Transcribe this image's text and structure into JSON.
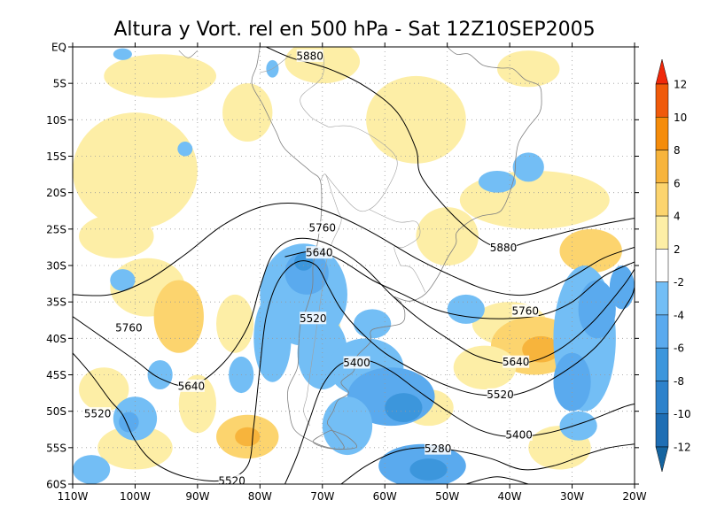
{
  "title": "Altura y Vort. rel en 500 hPa - Sat 12Z10SEP2005",
  "map": {
    "lon_range": [
      -110,
      -20
    ],
    "lat_range": [
      -60,
      0
    ],
    "lat_ticks": [
      {
        "v": 0,
        "label": "EQ"
      },
      {
        "v": -5,
        "label": "5S"
      },
      {
        "v": -10,
        "label": "10S"
      },
      {
        "v": -15,
        "label": "15S"
      },
      {
        "v": -20,
        "label": "20S"
      },
      {
        "v": -25,
        "label": "25S"
      },
      {
        "v": -30,
        "label": "30S"
      },
      {
        "v": -35,
        "label": "35S"
      },
      {
        "v": -40,
        "label": "40S"
      },
      {
        "v": -45,
        "label": "45S"
      },
      {
        "v": -50,
        "label": "50S"
      },
      {
        "v": -55,
        "label": "55S"
      },
      {
        "v": -60,
        "label": "60S"
      }
    ],
    "lon_ticks": [
      {
        "v": -110,
        "label": "110W"
      },
      {
        "v": -100,
        "label": "100W"
      },
      {
        "v": -90,
        "label": "90W"
      },
      {
        "v": -80,
        "label": "80W"
      },
      {
        "v": -70,
        "label": "70W"
      },
      {
        "v": -60,
        "label": "60W"
      },
      {
        "v": -50,
        "label": "50W"
      },
      {
        "v": -40,
        "label": "40W"
      },
      {
        "v": -30,
        "label": "30W"
      },
      {
        "v": -20,
        "label": "20W"
      }
    ],
    "grid": true
  },
  "contours": [
    {
      "value": 5880,
      "labels": [
        {
          "text": "5880",
          "lon": -72,
          "lat": -1.2
        },
        {
          "text": "5880",
          "lon": -41,
          "lat": -27.5
        }
      ],
      "lines": [
        [
          [
            -79,
            0
          ],
          [
            -75,
            -1.5
          ],
          [
            -69,
            -3
          ],
          [
            -63,
            -5.5
          ],
          [
            -58,
            -9
          ],
          [
            -55,
            -14
          ],
          [
            -54,
            -18
          ],
          [
            -48,
            -24
          ],
          [
            -42,
            -27.5
          ],
          [
            -36,
            -26.5
          ],
          [
            -29,
            -25
          ],
          [
            -20,
            -23.5
          ]
        ]
      ]
    },
    {
      "value": 5760,
      "labels": [
        {
          "text": "5760",
          "lon": -70,
          "lat": -24.8
        },
        {
          "text": "5760",
          "lon": -101,
          "lat": -38.5
        },
        {
          "text": "5760",
          "lon": -37.5,
          "lat": -36.2
        }
      ],
      "lines": [
        [
          [
            -110,
            -34
          ],
          [
            -104,
            -34
          ],
          [
            -98,
            -32
          ],
          [
            -92,
            -28.5
          ],
          [
            -86,
            -24.5
          ],
          [
            -80,
            -22
          ],
          [
            -74,
            -21.5
          ],
          [
            -68,
            -23
          ],
          [
            -62,
            -25.5
          ],
          [
            -55,
            -29
          ],
          [
            -49,
            -31.5
          ],
          [
            -43,
            -33.5
          ],
          [
            -37,
            -34
          ],
          [
            -31,
            -32
          ],
          [
            -25,
            -29
          ],
          [
            -20,
            -27.5
          ]
        ],
        [
          [
            -20,
            -29.5
          ],
          [
            -25,
            -31.5
          ],
          [
            -30,
            -35
          ],
          [
            -35,
            -36.8
          ],
          [
            -41,
            -37.3
          ],
          [
            -47,
            -37
          ],
          [
            -52,
            -36
          ],
          [
            -57,
            -34
          ],
          [
            -62,
            -32
          ],
          [
            -67,
            -29.3
          ],
          [
            -71,
            -28
          ],
          [
            -76,
            -28.8
          ]
        ]
      ]
    },
    {
      "value": 5640,
      "labels": [
        {
          "text": "5640",
          "lon": -70.5,
          "lat": -28.2
        },
        {
          "text": "5640",
          "lon": -91,
          "lat": -46.5
        },
        {
          "text": "5640",
          "lon": -39,
          "lat": -43.2
        }
      ],
      "lines": [
        [
          [
            -110,
            -37
          ],
          [
            -105,
            -40
          ],
          [
            -100,
            -43
          ],
          [
            -96,
            -45.5
          ],
          [
            -91,
            -46.5
          ],
          [
            -86,
            -43.5
          ],
          [
            -82,
            -38.5
          ],
          [
            -80,
            -33
          ],
          [
            -78,
            -28.5
          ],
          [
            -75,
            -26.5
          ],
          [
            -71,
            -26.5
          ],
          [
            -67,
            -28
          ],
          [
            -63,
            -30.5
          ],
          [
            -59,
            -34
          ],
          [
            -55,
            -37
          ],
          [
            -50,
            -40
          ],
          [
            -45,
            -42.5
          ],
          [
            -39,
            -43.5
          ],
          [
            -33,
            -42
          ],
          [
            -27,
            -38
          ],
          [
            -22,
            -33
          ],
          [
            -20,
            -30.5
          ]
        ]
      ]
    },
    {
      "value": 5520,
      "labels": [
        {
          "text": "5520",
          "lon": -71.5,
          "lat": -37.2
        },
        {
          "text": "5520",
          "lon": -106,
          "lat": -50.3
        },
        {
          "text": "5520",
          "lon": -41.5,
          "lat": -47.7
        },
        {
          "text": "5520",
          "lon": -84.5,
          "lat": -59.5
        }
      ],
      "lines": [
        [
          [
            -110,
            -42
          ],
          [
            -107,
            -45
          ],
          [
            -104,
            -48.5
          ],
          [
            -102,
            -50.5
          ],
          [
            -100,
            -54
          ],
          [
            -97,
            -57
          ],
          [
            -92,
            -59
          ],
          [
            -86,
            -59.5
          ],
          [
            -82,
            -57.5
          ],
          [
            -81,
            -52
          ],
          [
            -80,
            -44
          ],
          [
            -79,
            -37
          ],
          [
            -77,
            -32
          ],
          [
            -74,
            -29.5
          ],
          [
            -71,
            -30
          ],
          [
            -69,
            -33
          ],
          [
            -67,
            -36
          ],
          [
            -64,
            -39
          ],
          [
            -60,
            -42
          ],
          [
            -55,
            -44.5
          ],
          [
            -50,
            -46.5
          ],
          [
            -45,
            -47.7
          ],
          [
            -39,
            -47.7
          ],
          [
            -33,
            -45.5
          ],
          [
            -26,
            -41
          ],
          [
            -21,
            -35
          ],
          [
            -20,
            -33
          ]
        ]
      ]
    },
    {
      "value": 5400,
      "labels": [
        {
          "text": "5400",
          "lon": -64.5,
          "lat": -43.3
        },
        {
          "text": "5400",
          "lon": -38.5,
          "lat": -53.2
        }
      ],
      "lines": [
        [
          [
            -76,
            -60
          ],
          [
            -74,
            -56
          ],
          [
            -72,
            -51
          ],
          [
            -70,
            -46.5
          ],
          [
            -67,
            -43.5
          ],
          [
            -63,
            -43
          ],
          [
            -59,
            -44.5
          ],
          [
            -55,
            -47
          ],
          [
            -50,
            -50
          ],
          [
            -45,
            -52.5
          ],
          [
            -40,
            -53.5
          ],
          [
            -34,
            -53
          ],
          [
            -28,
            -51.5
          ],
          [
            -22,
            -49.5
          ],
          [
            -20,
            -49
          ]
        ]
      ]
    },
    {
      "value": 5280,
      "labels": [
        {
          "text": "5280",
          "lon": -51.5,
          "lat": -55.1
        }
      ],
      "lines": [
        [
          [
            -67,
            -60
          ],
          [
            -63,
            -57.5
          ],
          [
            -58,
            -55.5
          ],
          [
            -53,
            -55
          ],
          [
            -48,
            -55.5
          ],
          [
            -43,
            -56.5
          ],
          [
            -38,
            -58
          ],
          [
            -33,
            -57.5
          ],
          [
            -28,
            -56
          ],
          [
            -24,
            -55
          ],
          [
            -20,
            -54.5
          ]
        ],
        [
          [
            -47,
            -60
          ],
          [
            -42,
            -59
          ],
          [
            -37,
            -60
          ]
        ]
      ]
    }
  ],
  "colorbar": {
    "ticks": [
      {
        "label": "12"
      },
      {
        "label": "10"
      },
      {
        "label": "8"
      },
      {
        "label": "6"
      },
      {
        "label": "4"
      },
      {
        "label": "2"
      },
      {
        "label": "-2"
      },
      {
        "label": "-4"
      },
      {
        "label": "-6"
      },
      {
        "label": "-8"
      },
      {
        "label": "-10"
      },
      {
        "label": "-12"
      }
    ],
    "colors": {
      "gt12": "#f0280a",
      "b10_12": "#f05a0a",
      "b8_10": "#f58c0a",
      "b6_8": "#f7b43c",
      "b4_6": "#fcd46e",
      "b2_4": "#fdeea6",
      "b0": "#ffffff",
      "bn2_n4": "#73bef5",
      "bn4_n6": "#5aaaee",
      "bn6_n8": "#3c96dc",
      "bn8_n10": "#2d82cb",
      "bn10_n12": "#1e6eb4",
      "ltn12": "#1464a0"
    }
  },
  "shading": {
    "positive": [
      {
        "lon": -100,
        "lat": -17,
        "rx": 10,
        "ry": 8,
        "level": 1
      },
      {
        "lon": -96,
        "lat": -4,
        "rx": 9,
        "ry": 3,
        "level": 1
      },
      {
        "lon": -82,
        "lat": -9,
        "rx": 4,
        "ry": 4,
        "level": 1
      },
      {
        "lon": -103,
        "lat": -26,
        "rx": 6,
        "ry": 3,
        "level": 1
      },
      {
        "lon": -98,
        "lat": -33,
        "rx": 6,
        "ry": 4,
        "level": 1
      },
      {
        "lon": -93,
        "lat": -37,
        "rx": 4,
        "ry": 5,
        "level": 2
      },
      {
        "lon": -84,
        "lat": -38,
        "rx": 3,
        "ry": 4,
        "level": 1
      },
      {
        "lon": -90,
        "lat": -49,
        "rx": 3,
        "ry": 4,
        "level": 1
      },
      {
        "lon": -82,
        "lat": -53.5,
        "rx": 5,
        "ry": 3,
        "level": 2
      },
      {
        "lon": -82,
        "lat": -53.5,
        "rx": 2,
        "ry": 1.3,
        "level": 3
      },
      {
        "lon": -100,
        "lat": -55,
        "rx": 6,
        "ry": 3,
        "level": 1
      },
      {
        "lon": -70,
        "lat": -2,
        "rx": 6,
        "ry": 3,
        "level": 1
      },
      {
        "lon": -55,
        "lat": -10,
        "rx": 8,
        "ry": 6,
        "level": 1
      },
      {
        "lon": -50,
        "lat": -26,
        "rx": 5,
        "ry": 4,
        "level": 1
      },
      {
        "lon": -36,
        "lat": -21,
        "rx": 12,
        "ry": 4,
        "level": 1
      },
      {
        "lon": -27,
        "lat": -28,
        "rx": 5,
        "ry": 3,
        "level": 2
      },
      {
        "lon": -40,
        "lat": -38,
        "rx": 6,
        "ry": 3,
        "level": 1
      },
      {
        "lon": -36,
        "lat": -41,
        "rx": 7,
        "ry": 4,
        "level": 2
      },
      {
        "lon": -35,
        "lat": -41.5,
        "rx": 3,
        "ry": 1.8,
        "level": 3
      },
      {
        "lon": -44,
        "lat": -44,
        "rx": 5,
        "ry": 3,
        "level": 1
      },
      {
        "lon": -53,
        "lat": -49.5,
        "rx": 4,
        "ry": 2.5,
        "level": 1
      },
      {
        "lon": -32,
        "lat": -55,
        "rx": 5,
        "ry": 3,
        "level": 1
      },
      {
        "lon": -70,
        "lat": -40,
        "rx": 3,
        "ry": 6,
        "level": 1
      },
      {
        "lon": -105,
        "lat": -47,
        "rx": 4,
        "ry": 3,
        "level": 1
      },
      {
        "lon": -37,
        "lat": -3,
        "rx": 5,
        "ry": 2.5,
        "level": 1
      }
    ],
    "negative": [
      {
        "lon": -73,
        "lat": -34,
        "rx": 7,
        "ry": 7,
        "level": 1
      },
      {
        "lon": -72.5,
        "lat": -31,
        "rx": 3.5,
        "ry": 3,
        "level": 2
      },
      {
        "lon": -73,
        "lat": -29.5,
        "rx": 1.5,
        "ry": 1.2,
        "level": 3
      },
      {
        "lon": -78,
        "lat": -40,
        "rx": 3,
        "ry": 6,
        "level": 1
      },
      {
        "lon": -70,
        "lat": -42,
        "rx": 4,
        "ry": 5,
        "level": 1
      },
      {
        "lon": -63,
        "lat": -44,
        "rx": 6,
        "ry": 4,
        "level": 1
      },
      {
        "lon": -59,
        "lat": -48,
        "rx": 7,
        "ry": 4,
        "level": 2
      },
      {
        "lon": -57,
        "lat": -49.5,
        "rx": 3,
        "ry": 2,
        "level": 3
      },
      {
        "lon": -66,
        "lat": -52,
        "rx": 4,
        "ry": 4,
        "level": 1
      },
      {
        "lon": -54,
        "lat": -57.5,
        "rx": 7,
        "ry": 3,
        "level": 2
      },
      {
        "lon": -53,
        "lat": -58,
        "rx": 3,
        "ry": 1.5,
        "level": 3
      },
      {
        "lon": -62,
        "lat": -38,
        "rx": 3,
        "ry": 2,
        "level": 1
      },
      {
        "lon": -47,
        "lat": -36,
        "rx": 3,
        "ry": 2,
        "level": 1
      },
      {
        "lon": -28,
        "lat": -40,
        "rx": 5,
        "ry": 10,
        "level": 1
      },
      {
        "lon": -26,
        "lat": -36,
        "rx": 3,
        "ry": 4,
        "level": 2
      },
      {
        "lon": -30,
        "lat": -46,
        "rx": 3,
        "ry": 4,
        "level": 2
      },
      {
        "lon": -22,
        "lat": -33,
        "rx": 2,
        "ry": 3,
        "level": 2
      },
      {
        "lon": -100,
        "lat": -51,
        "rx": 3.5,
        "ry": 3,
        "level": 1
      },
      {
        "lon": -101,
        "lat": -51.5,
        "rx": 1.6,
        "ry": 1.4,
        "level": 2
      },
      {
        "lon": -102,
        "lat": -32,
        "rx": 2,
        "ry": 1.5,
        "level": 1
      },
      {
        "lon": -96,
        "lat": -45,
        "rx": 2,
        "ry": 2,
        "level": 1
      },
      {
        "lon": -83,
        "lat": -45,
        "rx": 2,
        "ry": 2.5,
        "level": 1
      },
      {
        "lon": -37,
        "lat": -16.5,
        "rx": 2.5,
        "ry": 2,
        "level": 1
      },
      {
        "lon": -42,
        "lat": -18.5,
        "rx": 3,
        "ry": 1.5,
        "level": 1
      },
      {
        "lon": -102,
        "lat": -1,
        "rx": 1.5,
        "ry": 0.8,
        "level": 1
      },
      {
        "lon": -92,
        "lat": -14,
        "rx": 1.2,
        "ry": 1,
        "level": 1
      },
      {
        "lon": -78,
        "lat": -3,
        "rx": 1,
        "ry": 1.2,
        "level": 1
      },
      {
        "lon": -29,
        "lat": -52,
        "rx": 3,
        "ry": 2,
        "level": 1
      },
      {
        "lon": -107,
        "lat": -58,
        "rx": 3,
        "ry": 2,
        "level": 1
      }
    ]
  }
}
